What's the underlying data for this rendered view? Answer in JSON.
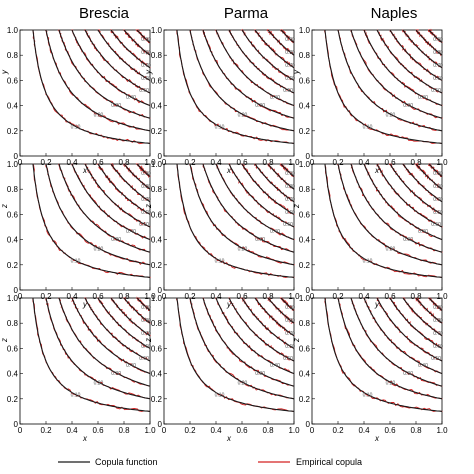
{
  "columns": [
    "Brescia",
    "Parma",
    "Naples"
  ],
  "row_axes": [
    {
      "x": "x",
      "y": "y"
    },
    {
      "x": "y",
      "y": "z"
    },
    {
      "x": "x",
      "y": "z"
    }
  ],
  "legend": {
    "copula_label": "Copula function",
    "empirical_label": "Empirical copula"
  },
  "colors": {
    "copula": "#1a1a1a",
    "empirical": "#d42020",
    "label": "#555555"
  },
  "chart_data": {
    "type": "line",
    "title": "",
    "xlim": [
      0,
      1
    ],
    "ylim": [
      0,
      1
    ],
    "ticks": [
      "0",
      "0.2",
      "0.4",
      "0.6",
      "0.8",
      "1.0"
    ],
    "tick_values": [
      0,
      0.2,
      0.4,
      0.6,
      0.8,
      1.0
    ],
    "contour_levels": [
      0.1,
      0.2,
      0.3,
      0.4,
      0.5,
      0.6,
      0.7,
      0.8,
      0.9
    ],
    "contour_labels": [
      "0.10",
      "0.20",
      "0.30",
      "0.40",
      "0.50",
      "0.60",
      "0.70",
      "0.80",
      "0.90"
    ],
    "series": [
      {
        "name": "Copula function",
        "style": "solid"
      },
      {
        "name": "Empirical copula",
        "style": "solid"
      }
    ],
    "grid": false,
    "legend_position": "bottom",
    "panels": [
      {
        "column": "Brescia",
        "xlabel": "x",
        "ylabel": "y"
      },
      {
        "column": "Parma",
        "xlabel": "x",
        "ylabel": "y"
      },
      {
        "column": "Naples",
        "xlabel": "x",
        "ylabel": "y"
      },
      {
        "column": "Brescia",
        "xlabel": "y",
        "ylabel": "z"
      },
      {
        "column": "Parma",
        "xlabel": "y",
        "ylabel": "z"
      },
      {
        "column": "Naples",
        "xlabel": "y",
        "ylabel": "z"
      },
      {
        "column": "Brescia",
        "xlabel": "x",
        "ylabel": "z"
      },
      {
        "column": "Parma",
        "xlabel": "x",
        "ylabel": "z"
      },
      {
        "column": "Naples",
        "xlabel": "x",
        "ylabel": "z"
      }
    ]
  }
}
